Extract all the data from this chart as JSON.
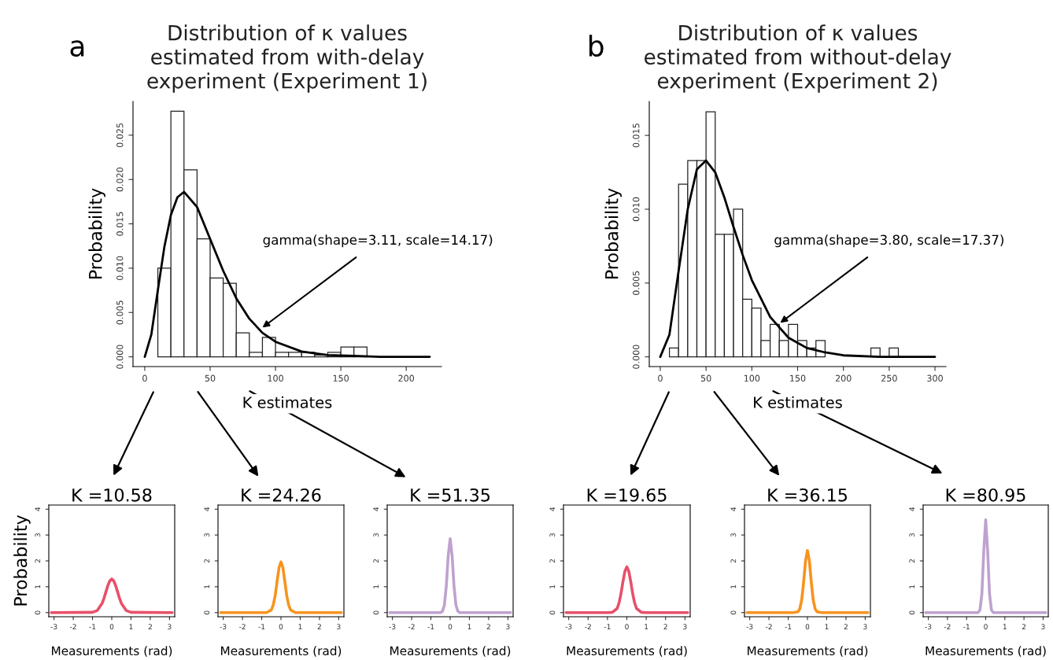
{
  "chart_data": [
    {
      "type": "histogram",
      "title": "Distribution of κ values\nestimated from with-delay\nexperiment (Experiment 1)",
      "xlabel": "K estimates",
      "ylabel": "Probability",
      "color": "#ffffff",
      "bins": [
        10,
        20,
        30,
        40,
        50,
        60,
        70,
        80,
        90,
        100,
        110,
        120,
        130,
        140,
        150,
        160,
        170
      ],
      "values": [
        0.01,
        0.0277,
        0.0211,
        0.0133,
        0.0089,
        0.0083,
        0.0027,
        0.0005,
        0.0022,
        0.0005,
        0.0005,
        0.0005,
        0.0002,
        0.0005,
        0.0011,
        0.0011
      ],
      "series": [
        {
          "type": "line",
          "color": "#000000",
          "x": [
            0,
            5,
            10,
            15,
            20,
            25,
            30,
            40,
            50,
            60,
            70,
            80,
            90,
            100,
            120,
            140,
            160,
            180,
            218
          ],
          "values": [
            0,
            0.0025,
            0.0075,
            0.0124,
            0.016,
            0.018,
            0.0186,
            0.0169,
            0.0133,
            0.0097,
            0.0066,
            0.0043,
            0.0027,
            0.0017,
            0.0006,
            0.0002,
            0.0001,
            0,
            0
          ]
        }
      ],
      "xlim": [
        -9,
        227
      ],
      "xticks": [
        0,
        50,
        100,
        150,
        200
      ],
      "ylim": [
        -0.0011,
        0.0288
      ],
      "yticks": [
        {
          "value": 0,
          "label": "0.000"
        },
        {
          "value": 0.005,
          "label": "0.005"
        },
        {
          "value": 0.01,
          "label": "0.010"
        },
        {
          "value": 0.015,
          "label": "0.015"
        },
        {
          "value": 0.02,
          "label": "0.020"
        },
        {
          "value": 0.025,
          "label": "0.025"
        }
      ],
      "annotations": [
        "a",
        {
          "text": "gamma(shape=3.11, scale=14.17)",
          "x": 90,
          "y": 0.0033
        }
      ]
    },
    {
      "type": "histogram",
      "title": "Distribution of κ values\nestimated from without-delay\nexperiment (Experiment 2)",
      "xlabel": "K estimates",
      "ylabel": "Probability",
      "color": "#ffffff",
      "bins": [
        10,
        20,
        30,
        40,
        50,
        60,
        70,
        80,
        90,
        100,
        110,
        120,
        130,
        140,
        150,
        160,
        170,
        180,
        190,
        200,
        210,
        220,
        230,
        240,
        250,
        260
      ],
      "values": [
        0.0006,
        0.0117,
        0.0133,
        0.0133,
        0.0166,
        0.0083,
        0.0083,
        0.01,
        0.0039,
        0.0033,
        0.0011,
        0.0022,
        0.0011,
        0.0022,
        0.0011,
        0.0006,
        0.0011,
        0,
        0,
        0,
        0,
        0,
        0.0006,
        0,
        0.0006
      ],
      "series": [
        {
          "type": "line",
          "color": "#000000",
          "x": [
            0,
            10,
            20,
            30,
            40,
            50,
            60,
            70,
            80,
            90,
            100,
            120,
            140,
            160,
            180,
            200,
            240,
            300
          ],
          "values": [
            0,
            0.0015,
            0.0058,
            0.01,
            0.0127,
            0.0133,
            0.0125,
            0.0108,
            0.0088,
            0.0069,
            0.0052,
            0.0027,
            0.0013,
            0.0006,
            0.0003,
            0.0001,
            0,
            0
          ]
        }
      ],
      "xlim": [
        -12,
        312
      ],
      "xticks": [
        0,
        50,
        100,
        150,
        200,
        250,
        300
      ],
      "ylim": [
        -0.00066,
        0.0173
      ],
      "yticks": [
        {
          "value": 0,
          "label": "0.000"
        },
        {
          "value": 0.005,
          "label": "0.005"
        },
        {
          "value": 0.01,
          "label": "0.010"
        },
        {
          "value": 0.015,
          "label": "0.015"
        }
      ],
      "annotations": [
        "b",
        {
          "text": "gamma(shape=3.80, scale=17.37)",
          "x": 131,
          "y": 0.0023
        }
      ]
    },
    {
      "type": "line",
      "title": "K =10.58",
      "xlabel": "Measurements (rad)",
      "ylabel": "Probability",
      "xlim": [
        -3.27,
        3.27
      ],
      "xticks": [
        -3,
        -2,
        -1,
        0,
        1,
        2,
        3
      ],
      "ylim": [
        -0.16,
        4.16
      ],
      "yticks": [
        0,
        1,
        2,
        3,
        4
      ],
      "series": [
        {
          "color": "#e8506a",
          "x": [
            -3.14,
            -1,
            -0.75,
            -0.5,
            -0.4,
            -0.3,
            -0.2,
            -0.1,
            0,
            0.1,
            0.2,
            0.3,
            0.4,
            0.5,
            0.75,
            1,
            3.14
          ],
          "values": [
            0,
            0.01,
            0.08,
            0.36,
            0.56,
            0.81,
            1.05,
            1.23,
            1.3,
            1.23,
            1.05,
            0.81,
            0.56,
            0.36,
            0.08,
            0.01,
            0
          ]
        }
      ]
    },
    {
      "type": "line",
      "title": "K =24.26",
      "xlabel": "Measurements (rad)",
      "xlim": [
        -3.27,
        3.27
      ],
      "xticks": [
        -3,
        -2,
        -1,
        0,
        1,
        2,
        3
      ],
      "ylim": [
        -0.16,
        4.16
      ],
      "yticks": [
        0,
        1,
        2,
        3,
        4
      ],
      "series": [
        {
          "color": "#f7931e",
          "x": [
            -3.14,
            -1,
            -0.75,
            -0.5,
            -0.4,
            -0.3,
            -0.2,
            -0.1,
            0,
            0.1,
            0.2,
            0.3,
            0.4,
            0.5,
            0.75,
            1,
            3.14
          ],
          "values": [
            0,
            0,
            0,
            0.1,
            0.29,
            0.66,
            1.21,
            1.74,
            1.96,
            1.74,
            1.21,
            0.66,
            0.29,
            0.1,
            0,
            0,
            0
          ]
        }
      ]
    },
    {
      "type": "line",
      "title": "K =51.35",
      "xlabel": "Measurements (rad)",
      "xlim": [
        -3.27,
        3.27
      ],
      "xticks": [
        -3,
        -2,
        -1,
        0,
        1,
        2,
        3
      ],
      "ylim": [
        -0.16,
        4.16
      ],
      "yticks": [
        0,
        1,
        2,
        3,
        4
      ],
      "series": [
        {
          "color": "#bfa2cf",
          "x": [
            -3.14,
            -1,
            -0.75,
            -0.5,
            -0.4,
            -0.3,
            -0.2,
            -0.1,
            0,
            0.1,
            0.2,
            0.3,
            0.4,
            0.5,
            0.75,
            1,
            3.14
          ],
          "values": [
            0,
            0,
            0,
            0,
            0.05,
            0.29,
            1.03,
            2.21,
            2.86,
            2.21,
            1.03,
            0.29,
            0.05,
            0,
            0,
            0,
            0
          ]
        }
      ]
    },
    {
      "type": "line",
      "title": "K =19.65",
      "xlabel": "Measurements (rad)",
      "xlim": [
        -3.27,
        3.27
      ],
      "xticks": [
        -3,
        -2,
        -1,
        0,
        1,
        2,
        3
      ],
      "ylim": [
        -0.16,
        4.16
      ],
      "yticks": [
        0,
        1,
        2,
        3,
        4
      ],
      "series": [
        {
          "color": "#e8506a",
          "x": [
            -3.14,
            -1,
            -0.75,
            -0.5,
            -0.4,
            -0.3,
            -0.2,
            -0.1,
            0,
            0.1,
            0.2,
            0.3,
            0.4,
            0.5,
            0.75,
            1,
            3.14
          ],
          "values": [
            0,
            0,
            0.01,
            0.16,
            0.38,
            0.74,
            1.2,
            1.6,
            1.77,
            1.6,
            1.2,
            0.74,
            0.38,
            0.16,
            0.01,
            0,
            0
          ]
        }
      ]
    },
    {
      "type": "line",
      "title": "K =36.15",
      "xlabel": "Measurements (rad)",
      "xlim": [
        -3.27,
        3.27
      ],
      "xticks": [
        -3,
        -2,
        -1,
        0,
        1,
        2,
        3
      ],
      "ylim": [
        -0.16,
        4.16
      ],
      "yticks": [
        0,
        1,
        2,
        3,
        4
      ],
      "series": [
        {
          "color": "#f7931e",
          "x": [
            -3.14,
            -1,
            -0.75,
            -0.5,
            -0.4,
            -0.3,
            -0.2,
            -0.1,
            0,
            0.1,
            0.2,
            0.3,
            0.4,
            0.5,
            0.75,
            1,
            3.14
          ],
          "values": [
            0,
            0,
            0,
            0.03,
            0.14,
            0.48,
            1.17,
            2.0,
            2.4,
            2.0,
            1.17,
            0.48,
            0.14,
            0.03,
            0,
            0,
            0
          ]
        }
      ]
    },
    {
      "type": "line",
      "title": "K =80.95",
      "xlabel": "Measurements (rad)",
      "xlim": [
        -3.27,
        3.27
      ],
      "xticks": [
        -3,
        -2,
        -1,
        0,
        1,
        2,
        3
      ],
      "ylim": [
        -0.16,
        4.16
      ],
      "yticks": [
        0,
        1,
        2,
        3,
        4
      ],
      "series": [
        {
          "color": "#bfa2cf",
          "x": [
            -3.14,
            -1,
            -0.75,
            -0.5,
            -0.4,
            -0.3,
            -0.2,
            -0.1,
            0,
            0.1,
            0.2,
            0.3,
            0.4,
            0.5,
            0.75,
            1,
            3.14
          ],
          "values": [
            0,
            0,
            0,
            0,
            0,
            0.1,
            0.72,
            2.4,
            3.59,
            2.4,
            0.72,
            0.1,
            0,
            0,
            0,
            0,
            0
          ]
        }
      ]
    }
  ]
}
